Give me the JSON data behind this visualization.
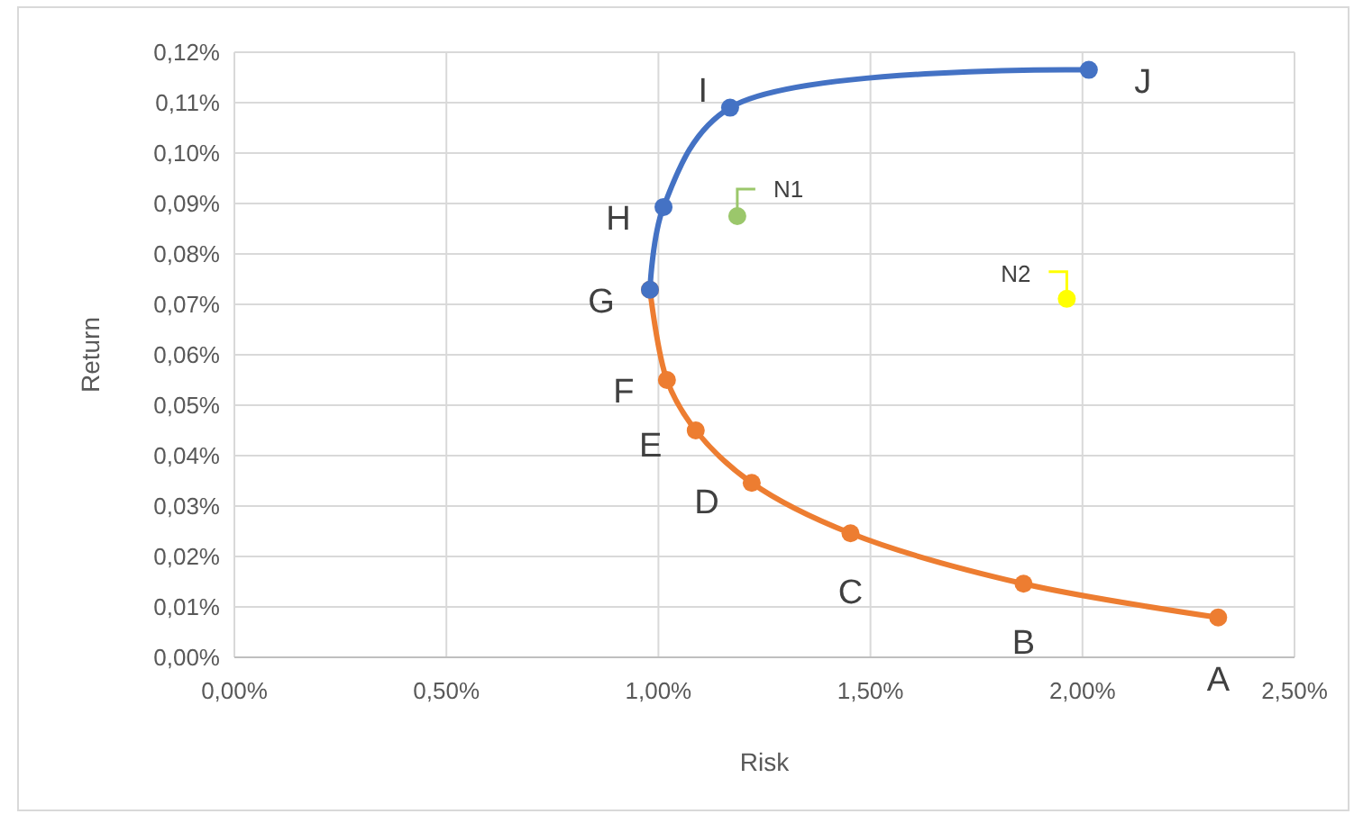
{
  "chart_data": {
    "type": "line",
    "xlabel": "Risk",
    "ylabel": "Return",
    "xlim": [
      0,
      2.5
    ],
    "ylim": [
      0,
      0.12
    ],
    "xticks": [
      {
        "value": 0,
        "label": "0,00%"
      },
      {
        "value": 0.5,
        "label": "0,50%"
      },
      {
        "value": 1,
        "label": "1,00%"
      },
      {
        "value": 1.5,
        "label": "1,50%"
      },
      {
        "value": 2,
        "label": "2,00%"
      },
      {
        "value": 2.5,
        "label": "2,50%"
      }
    ],
    "yticks": [
      {
        "value": 0,
        "label": "0,00%"
      },
      {
        "value": 0.01,
        "label": "0,01%"
      },
      {
        "value": 0.02,
        "label": "0,02%"
      },
      {
        "value": 0.03,
        "label": "0,03%"
      },
      {
        "value": 0.04,
        "label": "0,04%"
      },
      {
        "value": 0.05,
        "label": "0,05%"
      },
      {
        "value": 0.06,
        "label": "0,06%"
      },
      {
        "value": 0.07,
        "label": "0,07%"
      },
      {
        "value": 0.08,
        "label": "0,08%"
      },
      {
        "value": 0.09,
        "label": "0,09%"
      },
      {
        "value": 0.1,
        "label": "0,10%"
      },
      {
        "value": 0.11,
        "label": "0,11%"
      },
      {
        "value": 0.12,
        "label": "0,12%"
      }
    ],
    "grid": true,
    "marker": "circle",
    "line_style": "solid",
    "series": [
      {
        "color": "#ed7d31",
        "x": [
          2.32,
          1.861,
          1.453,
          1.22,
          1.088,
          1.02,
          0.98
        ],
        "values": [
          0.0079,
          0.0146,
          0.0246,
          0.0346,
          0.045,
          0.055,
          0.0729
        ]
      },
      {
        "color": "#4472c4",
        "x": [
          0.98,
          1.012,
          1.169,
          2.015
        ],
        "values": [
          0.0729,
          0.0893,
          0.109,
          0.1165
        ]
      },
      {
        "type": "scatter",
        "color": "#9bc76b",
        "x": [
          1.186
        ],
        "values": [
          0.0875
        ]
      },
      {
        "type": "scatter",
        "color": "#ffff00",
        "x": [
          1.963
        ],
        "values": [
          0.0711
        ]
      }
    ],
    "annotations": [
      {
        "text": "A",
        "x": 2.32,
        "y": 0.0079
      },
      {
        "text": "B",
        "x": 1.861,
        "y": 0.0146
      },
      {
        "text": "C",
        "x": 1.453,
        "y": 0.0246
      },
      {
        "text": "D",
        "x": 1.22,
        "y": 0.0346
      },
      {
        "text": "E",
        "x": 1.088,
        "y": 0.045
      },
      {
        "text": "F",
        "x": 1.02,
        "y": 0.055
      },
      {
        "text": "G",
        "x": 0.98,
        "y": 0.0729
      },
      {
        "text": "H",
        "x": 1.012,
        "y": 0.0893
      },
      {
        "text": "I",
        "x": 1.169,
        "y": 0.109
      },
      {
        "text": "J",
        "x": 2.015,
        "y": 0.1165
      },
      {
        "text": "N1",
        "x": 1.186,
        "y": 0.0875
      },
      {
        "text": "N2",
        "x": 1.963,
        "y": 0.0711
      }
    ]
  }
}
